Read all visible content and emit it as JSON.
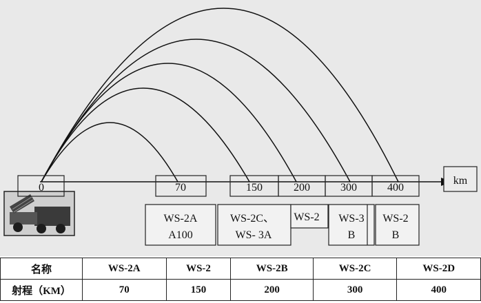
{
  "diagram": {
    "distance_ticks": [
      "0",
      "70",
      "150",
      "200",
      "300",
      "400"
    ],
    "axis_unit": "km",
    "trajectory_ranges": [
      70,
      150,
      200,
      300,
      400
    ],
    "system_labels": [
      {
        "line1": "WS-2A",
        "line2": "A100"
      },
      {
        "line1": "WS-2C、",
        "line2": "WS- 3A"
      },
      {
        "line1": "WS-2",
        "line2": ""
      },
      {
        "line1": "WS-3",
        "line2": "B"
      },
      {
        "line1": "WS-2",
        "line2": "B"
      }
    ],
    "launcher_icon": "rocket-launcher-truck-icon"
  },
  "table": {
    "header": {
      "label": "名称",
      "cells": [
        "WS-2A",
        "WS-2",
        "WS-2B",
        "WS-2C",
        "WS-2D"
      ]
    },
    "range_row": {
      "label": "射程（KM）",
      "cells": [
        "70",
        "150",
        "200",
        "300",
        "400"
      ]
    }
  }
}
